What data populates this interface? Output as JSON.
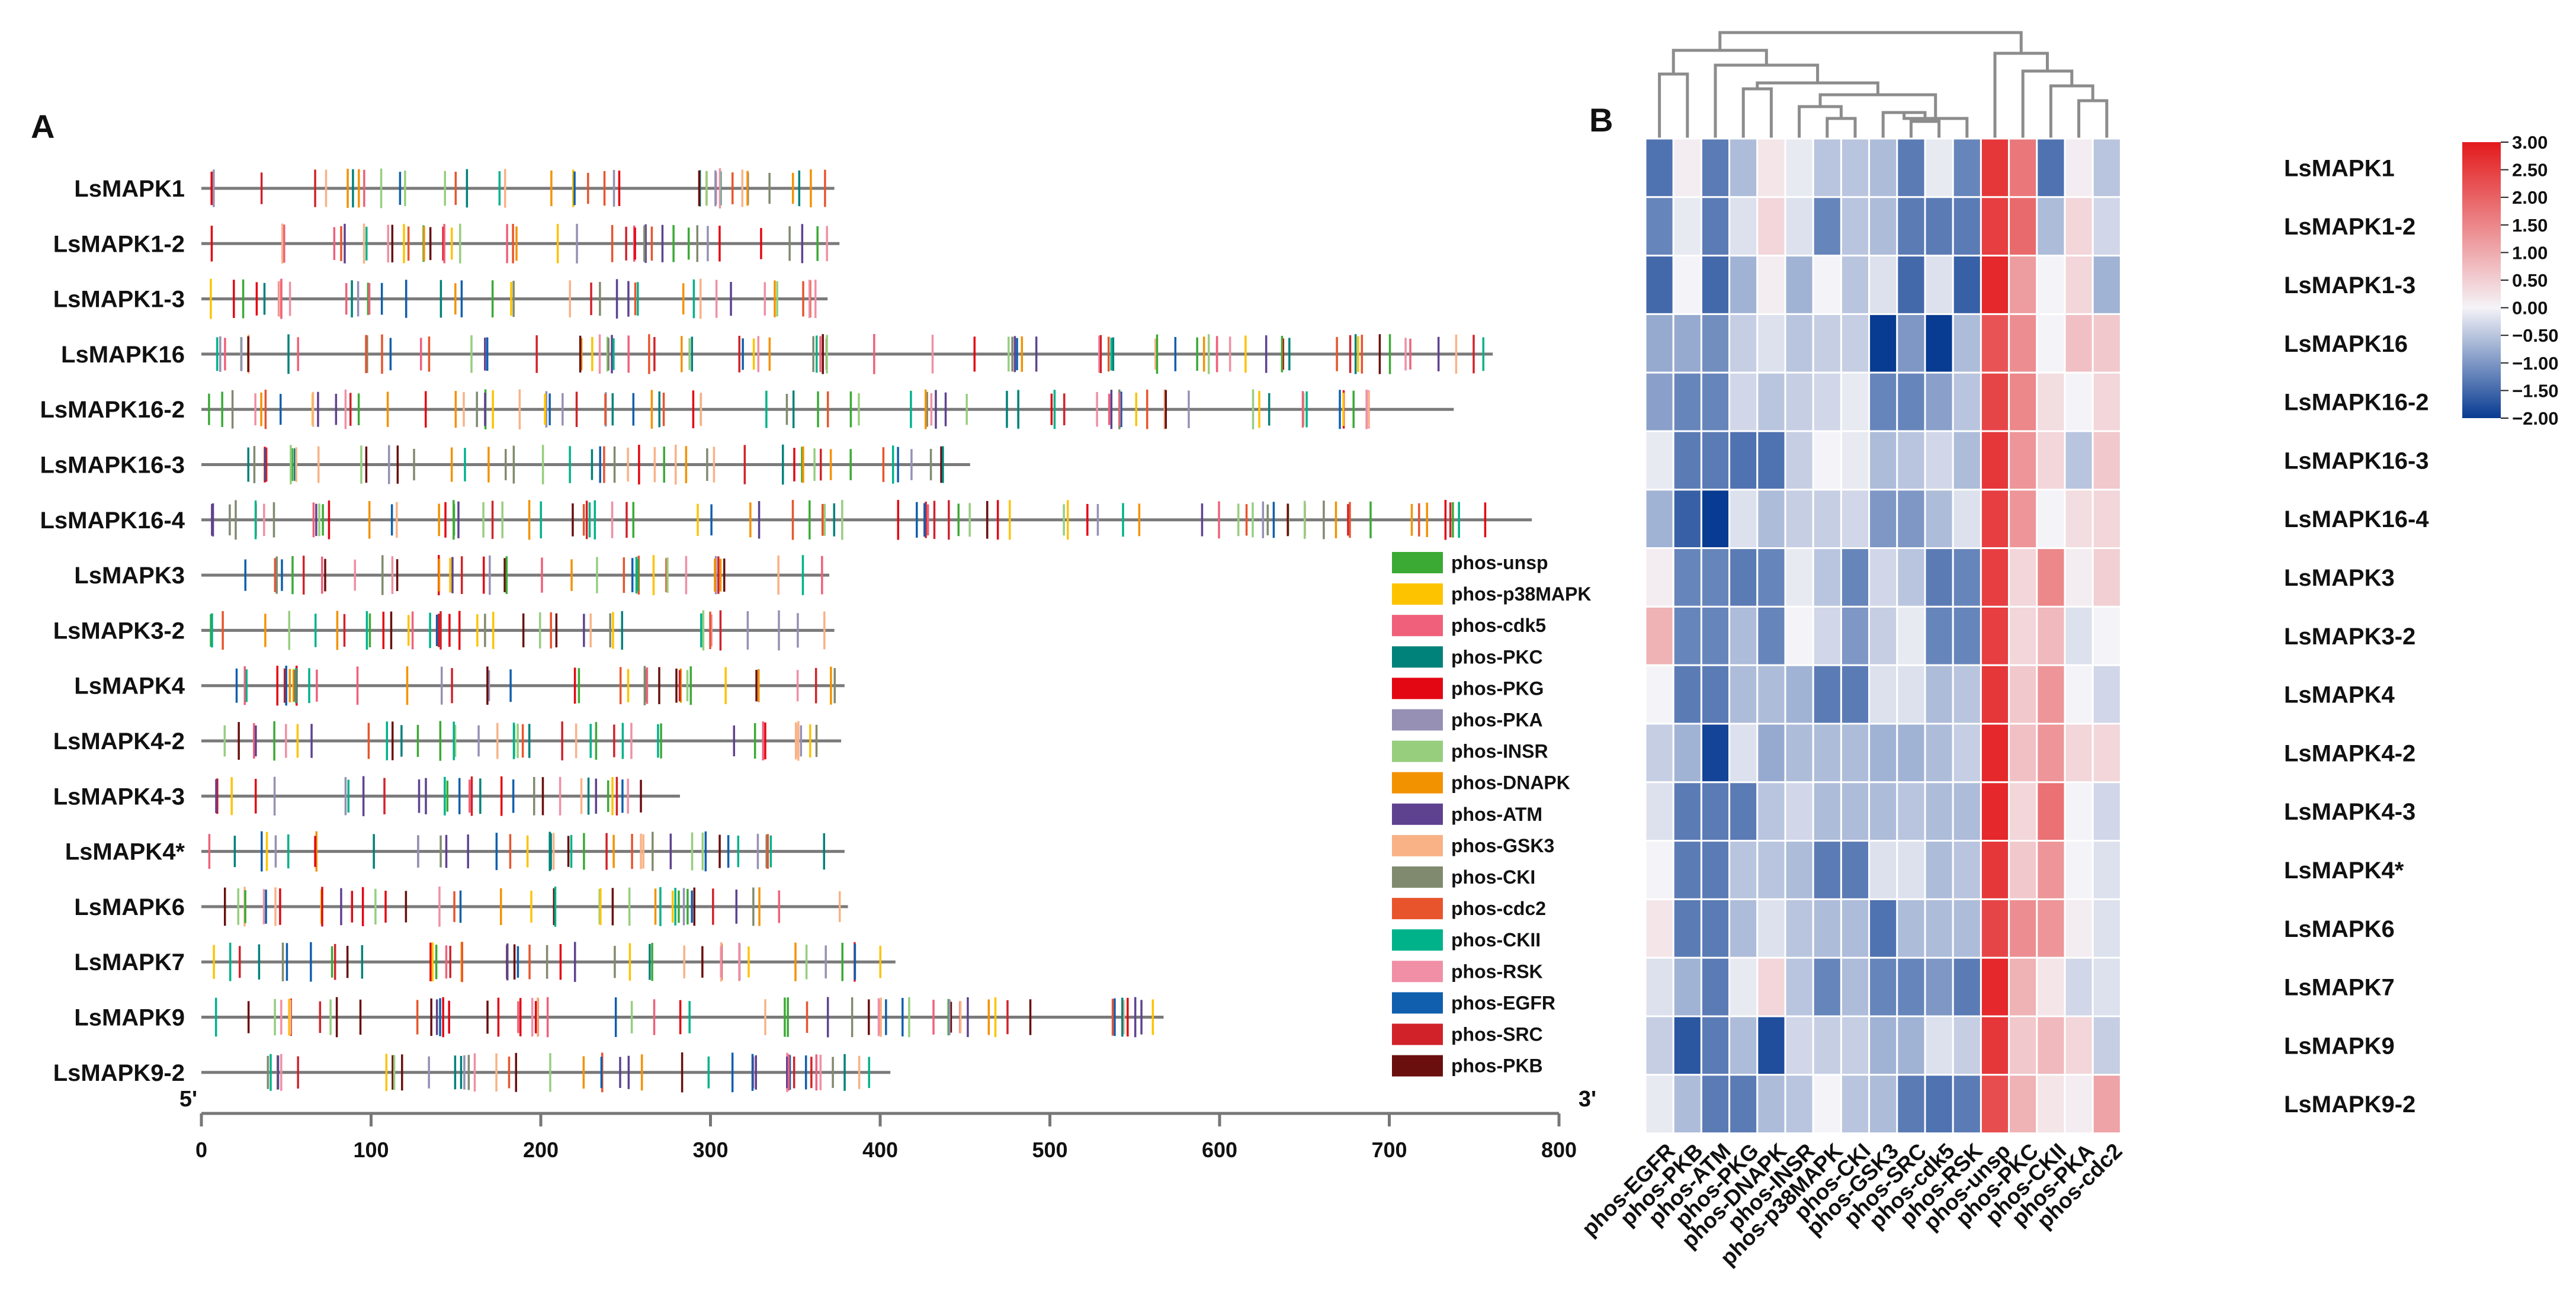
{
  "chart_data": [
    {
      "panel": "A",
      "type": "other",
      "description_label": "phosphorylation site map",
      "axis": {
        "start_label": "5'",
        "end_label": "3'",
        "min": 0,
        "max": 800,
        "ticks": [
          "0",
          "100",
          "200",
          "300",
          "400",
          "500",
          "600",
          "700",
          "800"
        ]
      },
      "legend": [
        {
          "name": "phos-unsp",
          "color": "#3aaa35"
        },
        {
          "name": "phos-p38MAPK",
          "color": "#fdc300"
        },
        {
          "name": "phos-cdk5",
          "color": "#f0607a"
        },
        {
          "name": "phos-PKC",
          "color": "#00817a"
        },
        {
          "name": "phos-PKG",
          "color": "#e30613"
        },
        {
          "name": "phos-PKA",
          "color": "#9590b4"
        },
        {
          "name": "phos-INSR",
          "color": "#96ce7e"
        },
        {
          "name": "phos-DNAPK",
          "color": "#f39200"
        },
        {
          "name": "phos-ATM",
          "color": "#5e4290"
        },
        {
          "name": "phos-GSK3",
          "color": "#f9b286"
        },
        {
          "name": "phos-CKI",
          "color": "#808a6e"
        },
        {
          "name": "phos-cdc2",
          "color": "#e8542c"
        },
        {
          "name": "phos-CKII",
          "color": "#00b28a"
        },
        {
          "name": "phos-RSK",
          "color": "#f08fa5"
        },
        {
          "name": "phos-EGFR",
          "color": "#0f5fae"
        },
        {
          "name": "phos-SRC",
          "color": "#d1222a"
        },
        {
          "name": "phos-PKB",
          "color": "#6a0e0e"
        }
      ],
      "proteins": [
        {
          "name": "LsMAPK1",
          "length": 373
        },
        {
          "name": "LsMAPK1-2",
          "length": 376
        },
        {
          "name": "LsMAPK1-3",
          "length": 369
        },
        {
          "name": "LsMAPK16",
          "length": 761
        },
        {
          "name": "LsMAPK16-2",
          "length": 738
        },
        {
          "name": "LsMAPK16-3",
          "length": 453
        },
        {
          "name": "LsMAPK16-4",
          "length": 784
        },
        {
          "name": "LsMAPK3",
          "length": 370
        },
        {
          "name": "LsMAPK3-2",
          "length": 373
        },
        {
          "name": "LsMAPK4",
          "length": 379
        },
        {
          "name": "LsMAPK4-2",
          "length": 377
        },
        {
          "name": "LsMAPK4-3",
          "length": 282
        },
        {
          "name": "LsMAPK4*",
          "length": 379
        },
        {
          "name": "LsMAPK6",
          "length": 381
        },
        {
          "name": "LsMAPK7",
          "length": 409
        },
        {
          "name": "LsMAPK9",
          "length": 567
        },
        {
          "name": "LsMAPK9-2",
          "length": 406
        }
      ]
    },
    {
      "panel": "B",
      "type": "heatmap",
      "rows": [
        "LsMAPK1",
        "LsMAPK1-2",
        "LsMAPK1-3",
        "LsMAPK16",
        "LsMAPK16-2",
        "LsMAPK16-3",
        "LsMAPK16-4",
        "LsMAPK3",
        "LsMAPK3-2",
        "LsMAPK4",
        "LsMAPK4-2",
        "LsMAPK4-3",
        "LsMAPK4*",
        "LsMAPK6",
        "LsMAPK7",
        "LsMAPK9",
        "LsMAPK9-2"
      ],
      "columns": [
        "phos-EGFR",
        "phos-PKB",
        "phos-ATM",
        "phos-PKG",
        "phos-DNAPK",
        "phos-INSR",
        "phos-p38MAPK",
        "phos-CKI",
        "phos-GSK3",
        "phos-SRC",
        "phos-cdk5",
        "phos-RSK",
        "phos-unsp",
        "phos-PKC",
        "phos-CKII",
        "phos-PKA",
        "phos-cdc2"
      ],
      "values": [
        [
          -1.4,
          0.1,
          -1.3,
          -0.6,
          0.2,
          -0.1,
          -0.5,
          -0.5,
          -0.6,
          -1.3,
          -0.1,
          -1.2,
          2.6,
          1.7,
          -1.4,
          0.1,
          -0.5
        ],
        [
          -1.2,
          -0.1,
          -1.3,
          -0.2,
          0.4,
          -0.2,
          -1.2,
          -0.5,
          -0.6,
          -1.3,
          -1.3,
          -1.3,
          2.5,
          1.9,
          -0.6,
          0.4,
          -0.3
        ],
        [
          -1.5,
          0.0,
          -1.5,
          -0.7,
          0.1,
          -0.7,
          0.0,
          -0.5,
          -0.2,
          -1.5,
          -0.2,
          -1.6,
          2.8,
          1.2,
          0.0,
          0.4,
          -0.7
        ],
        [
          -0.8,
          -0.8,
          -1.1,
          -0.4,
          -0.2,
          -0.5,
          -0.4,
          -0.4,
          -2.0,
          -1.0,
          -2.0,
          -0.6,
          2.2,
          1.4,
          0.0,
          0.7,
          0.6
        ],
        [
          -0.9,
          -1.2,
          -1.2,
          -0.3,
          -0.5,
          -0.4,
          -0.3,
          -0.1,
          -1.2,
          -1.2,
          -0.9,
          -0.5,
          2.4,
          1.5,
          0.3,
          0.0,
          0.4
        ],
        [
          -0.1,
          -1.3,
          -1.3,
          -1.4,
          -1.4,
          -0.4,
          0.0,
          -0.1,
          -0.6,
          -0.5,
          -0.3,
          -0.6,
          2.6,
          1.3,
          0.4,
          -0.5,
          0.6
        ],
        [
          -0.7,
          -1.6,
          -2.0,
          -0.2,
          -0.6,
          -0.4,
          -0.4,
          -0.3,
          -1.0,
          -1.0,
          -0.6,
          -0.2,
          2.5,
          1.3,
          0.0,
          0.3,
          0.4
        ],
        [
          0.1,
          -1.2,
          -1.2,
          -1.3,
          -1.2,
          -0.1,
          -0.5,
          -1.2,
          -0.3,
          -0.5,
          -1.3,
          -1.2,
          2.5,
          0.4,
          1.5,
          0.1,
          0.5
        ],
        [
          0.9,
          -1.2,
          -1.2,
          -0.6,
          -1.2,
          0.0,
          -0.3,
          -1.0,
          -0.4,
          -0.1,
          -1.2,
          -1.2,
          2.5,
          0.4,
          0.8,
          -0.2,
          0.0
        ],
        [
          0.0,
          -1.3,
          -1.3,
          -0.6,
          -0.6,
          -0.7,
          -1.3,
          -1.3,
          -0.2,
          -0.2,
          -0.6,
          -0.5,
          2.6,
          0.6,
          1.3,
          0.0,
          -0.3
        ],
        [
          -0.4,
          -0.7,
          -1.9,
          -0.2,
          -0.8,
          -0.6,
          -0.6,
          -0.6,
          -0.7,
          -0.7,
          -0.6,
          -0.4,
          2.8,
          0.7,
          1.3,
          0.4,
          0.4
        ],
        [
          -0.2,
          -1.3,
          -1.3,
          -1.3,
          -0.5,
          -0.3,
          -0.6,
          -0.6,
          -0.6,
          -0.5,
          -0.6,
          -0.6,
          2.8,
          0.4,
          1.8,
          0.0,
          -0.3
        ],
        [
          0.0,
          -1.3,
          -1.3,
          -0.5,
          -0.5,
          -0.6,
          -1.3,
          -1.3,
          -0.2,
          -0.2,
          -0.6,
          -0.5,
          2.6,
          0.6,
          1.3,
          0.0,
          -0.2
        ],
        [
          0.2,
          -1.3,
          -1.3,
          -0.6,
          -0.2,
          -0.5,
          -0.6,
          -0.6,
          -1.4,
          -0.6,
          -0.6,
          -0.6,
          2.4,
          1.4,
          1.3,
          0.1,
          -0.2
        ],
        [
          -0.2,
          -0.7,
          -1.3,
          -0.1,
          0.4,
          -0.5,
          -1.2,
          -0.6,
          -1.2,
          -1.2,
          -1.0,
          -1.3,
          2.8,
          0.9,
          0.2,
          -0.3,
          -0.2
        ],
        [
          -0.4,
          -1.7,
          -1.3,
          -0.6,
          -1.8,
          -0.3,
          -0.4,
          -0.4,
          -0.7,
          -0.7,
          -0.2,
          -0.4,
          2.6,
          0.6,
          0.8,
          0.4,
          -0.4
        ],
        [
          -0.1,
          -0.6,
          -1.3,
          -1.3,
          -0.6,
          -0.5,
          0.0,
          -0.5,
          -0.6,
          -1.3,
          -1.4,
          -1.3,
          2.3,
          0.9,
          0.2,
          0.1,
          1.1
        ]
      ],
      "colorbar": {
        "min": -2.0,
        "max": 3.0,
        "tick_labels": [
          "3.00",
          "2.50",
          "2.00",
          "1.50",
          "1.00",
          "0.50",
          "0.00",
          "−0.50",
          "−1.00",
          "−1.50",
          "−2.00"
        ],
        "low_color": "#083b92",
        "mid_color": "#f4f3f7",
        "high_color": "#e31a1c"
      },
      "dendrogram": "columns, top"
    }
  ],
  "labels": {
    "panel_a": "A",
    "panel_b": "B"
  }
}
